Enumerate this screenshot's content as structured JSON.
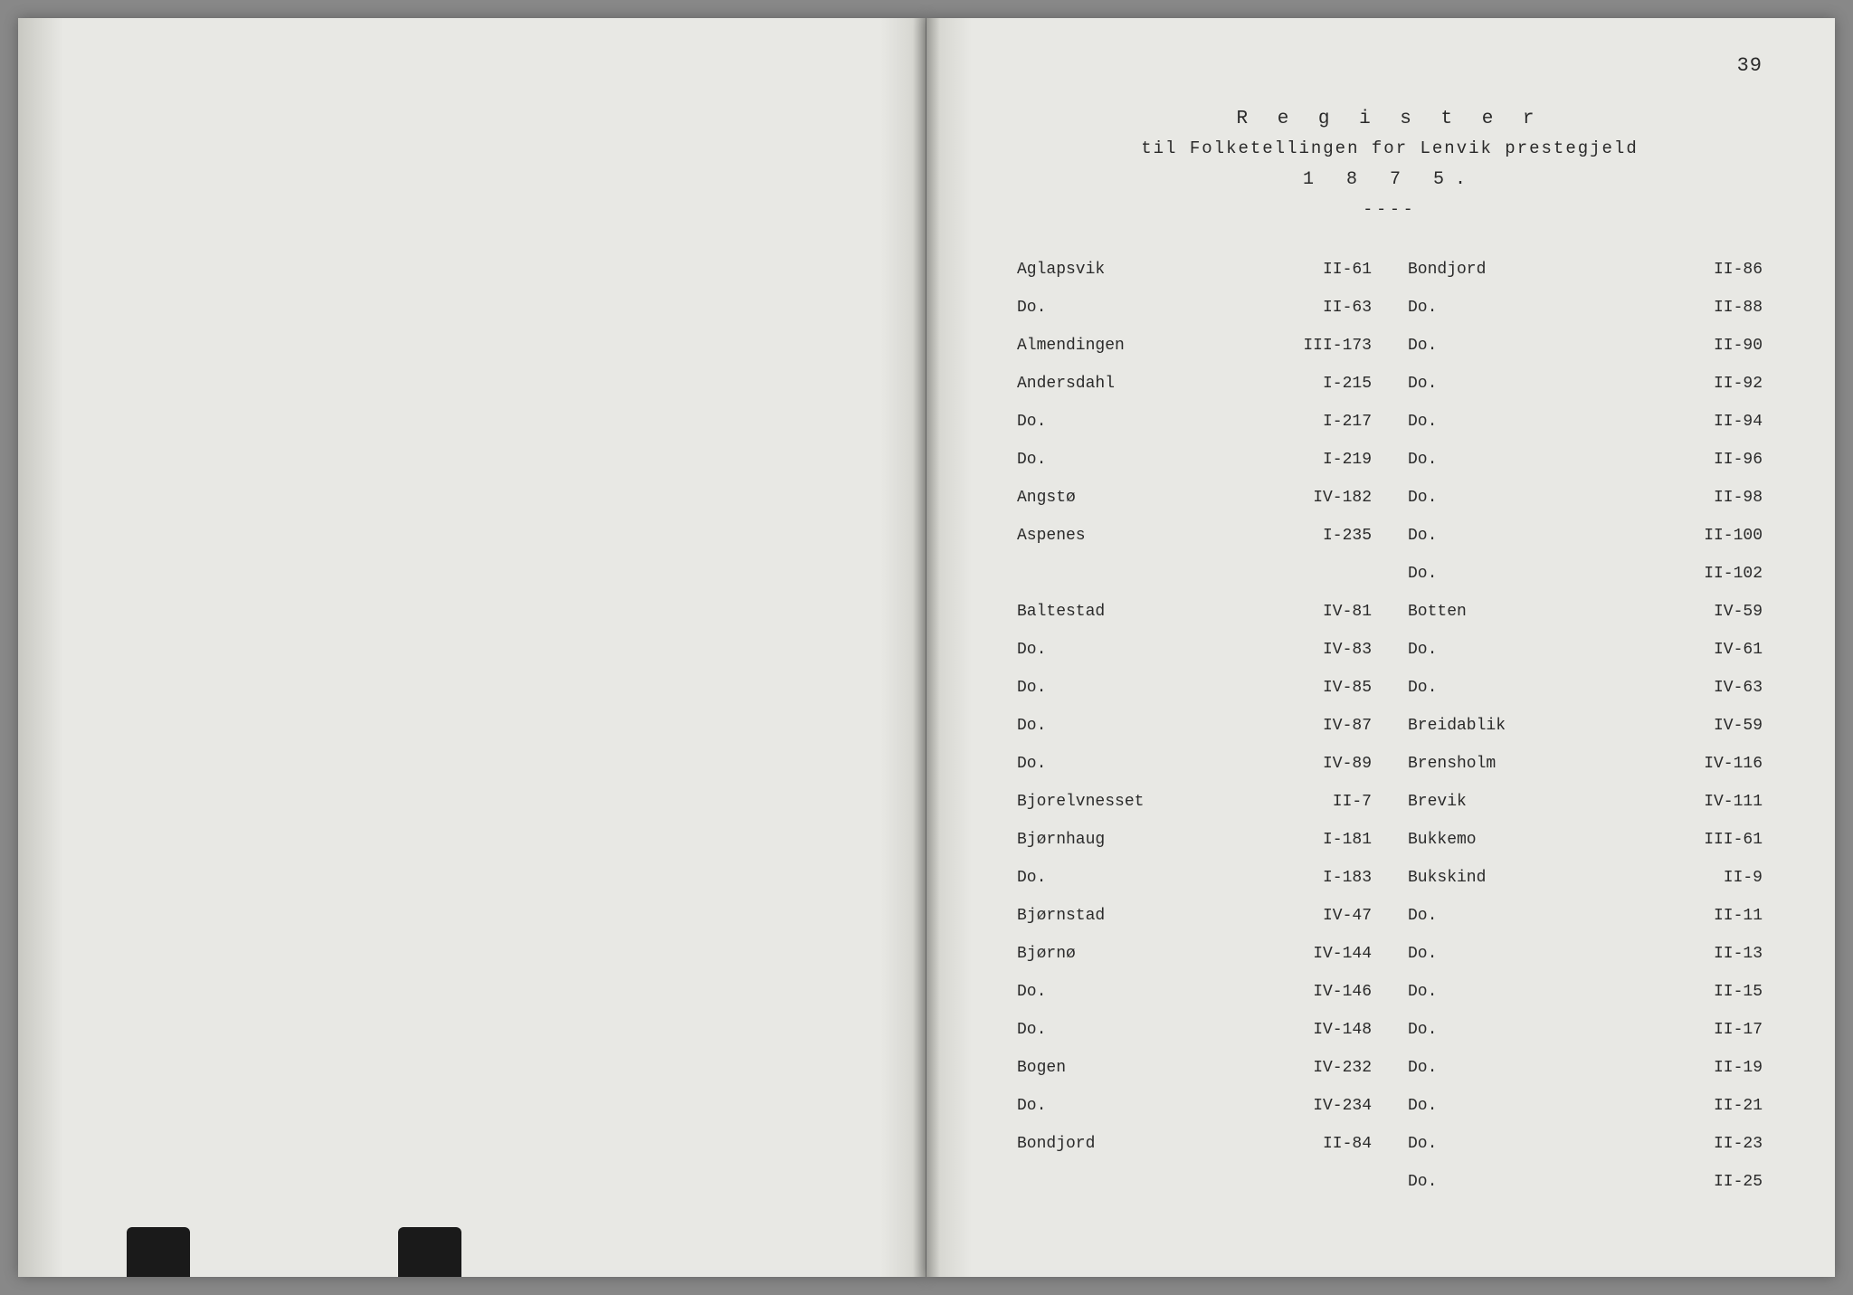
{
  "page_number": "39",
  "header": {
    "title": "R e g i s t e r",
    "subtitle": "til Folketellingen for Lenvik prestegjeld",
    "year": "1 8 7 5.",
    "divider": "----"
  },
  "columns": {
    "left": [
      {
        "place": "Aglapsvik",
        "ref": "II-61"
      },
      {
        "place": "Do.",
        "ref": "II-63"
      },
      {
        "place": "Almendingen",
        "ref": "III-173"
      },
      {
        "place": "Andersdahl",
        "ref": "I-215"
      },
      {
        "place": "Do.",
        "ref": "I-217"
      },
      {
        "place": "Do.",
        "ref": "I-219"
      },
      {
        "place": "Angstø",
        "ref": "IV-182"
      },
      {
        "place": "Aspenes",
        "ref": "I-235"
      },
      {
        "place": "",
        "ref": ""
      },
      {
        "place": "Baltestad",
        "ref": "IV-81"
      },
      {
        "place": "Do.",
        "ref": "IV-83"
      },
      {
        "place": "Do.",
        "ref": "IV-85"
      },
      {
        "place": "Do.",
        "ref": "IV-87"
      },
      {
        "place": "Do.",
        "ref": "IV-89"
      },
      {
        "place": "Bjorelvnesset",
        "ref": "II-7"
      },
      {
        "place": "Bjørnhaug",
        "ref": "I-181"
      },
      {
        "place": "Do.",
        "ref": "I-183"
      },
      {
        "place": "Bjørnstad",
        "ref": "IV-47"
      },
      {
        "place": "Bjørnø",
        "ref": "IV-144"
      },
      {
        "place": "Do.",
        "ref": "IV-146"
      },
      {
        "place": "Do.",
        "ref": "IV-148"
      },
      {
        "place": "Bogen",
        "ref": "IV-232"
      },
      {
        "place": "Do.",
        "ref": "IV-234"
      },
      {
        "place": "Bondjord",
        "ref": "II-84"
      }
    ],
    "right": [
      {
        "place": "Bondjord",
        "ref": "II-86"
      },
      {
        "place": "Do.",
        "ref": "II-88"
      },
      {
        "place": "Do.",
        "ref": "II-90"
      },
      {
        "place": "Do.",
        "ref": "II-92"
      },
      {
        "place": "Do.",
        "ref": "II-94"
      },
      {
        "place": "Do.",
        "ref": "II-96"
      },
      {
        "place": "Do.",
        "ref": "II-98"
      },
      {
        "place": "Do.",
        "ref": "II-100"
      },
      {
        "place": "Do.",
        "ref": "II-102"
      },
      {
        "place": "Botten",
        "ref": "IV-59"
      },
      {
        "place": "Do.",
        "ref": "IV-61"
      },
      {
        "place": "Do.",
        "ref": "IV-63"
      },
      {
        "place": "Breidablik",
        "ref": "IV-59"
      },
      {
        "place": "Brensholm",
        "ref": "IV-116"
      },
      {
        "place": "Brevik",
        "ref": "IV-111"
      },
      {
        "place": "Bukkemo",
        "ref": "III-61"
      },
      {
        "place": "Bukskind",
        "ref": "II-9"
      },
      {
        "place": "Do.",
        "ref": "II-11"
      },
      {
        "place": "Do.",
        "ref": "II-13"
      },
      {
        "place": "Do.",
        "ref": "II-15"
      },
      {
        "place": "Do.",
        "ref": "II-17"
      },
      {
        "place": "Do.",
        "ref": "II-19"
      },
      {
        "place": "Do.",
        "ref": "II-21"
      },
      {
        "place": "Do.",
        "ref": "II-23"
      },
      {
        "place": "Do.",
        "ref": "II-25"
      }
    ]
  },
  "styling": {
    "background_color": "#e8e8e4",
    "text_color": "#2a2a2a",
    "font_family": "Courier New",
    "title_fontsize": 21,
    "body_fontsize": 18,
    "line_height": 42
  }
}
